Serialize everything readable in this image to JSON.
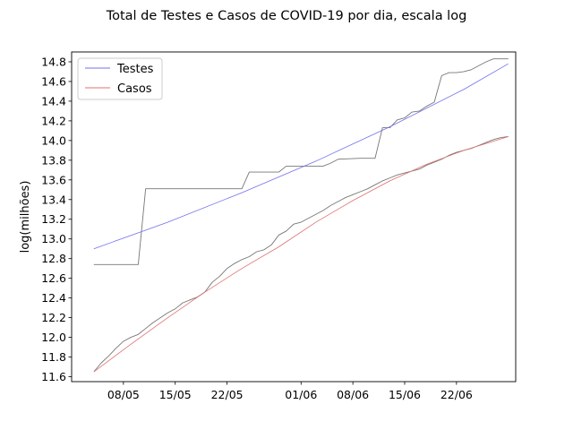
{
  "chart_data": {
    "type": "line",
    "title": "Total de Testes e Casos de COVID-19 por dia, escala log",
    "xlabel": "",
    "ylabel": "log(milhões)",
    "ylim": [
      11.55,
      14.9
    ],
    "yticks": [
      11.6,
      11.8,
      12.0,
      12.2,
      12.4,
      12.6,
      12.8,
      13.0,
      13.2,
      13.4,
      13.6,
      13.8,
      14.0,
      14.2,
      14.4,
      14.6,
      14.8
    ],
    "ytick_labels": [
      "11.6",
      "11.8",
      "12.0",
      "12.2",
      "12.4",
      "12.6",
      "12.8",
      "13.0",
      "13.2",
      "13.4",
      "13.6",
      "13.8",
      "14.0",
      "14.2",
      "14.4",
      "14.6",
      "14.8"
    ],
    "xlim": [
      "2020-05-01",
      "2020-06-30"
    ],
    "xticks": [
      "2020-05-08",
      "2020-05-15",
      "2020-05-22",
      "2020-06-01",
      "2020-06-08",
      "2020-06-15",
      "2020-06-22"
    ],
    "xtick_labels": [
      "08/05",
      "15/05",
      "22/05",
      "01/06",
      "08/06",
      "15/06",
      "22/06"
    ],
    "legend_position": "top-left",
    "grid": false,
    "series": [
      {
        "name": "Testes",
        "kind": "fit",
        "color": "#7070ee",
        "x": [
          "2020-05-04",
          "2020-05-14",
          "2020-05-24",
          "2020-06-03",
          "2020-06-13",
          "2020-06-23",
          "2020-06-29"
        ],
        "y": [
          12.9,
          13.17,
          13.47,
          13.79,
          14.14,
          14.52,
          14.78
        ]
      },
      {
        "name": "Casos",
        "kind": "fit",
        "color": "#e07070",
        "x": [
          "2020-05-04",
          "2020-05-09",
          "2020-05-14",
          "2020-05-19",
          "2020-05-24",
          "2020-05-29",
          "2020-06-03",
          "2020-06-08",
          "2020-06-13",
          "2020-06-18",
          "2020-06-23",
          "2020-06-29"
        ],
        "y": [
          11.65,
          11.93,
          12.2,
          12.46,
          12.7,
          12.92,
          13.17,
          13.39,
          13.59,
          13.76,
          13.9,
          14.04
        ]
      },
      {
        "kind": "data",
        "color": "#777777",
        "x": [
          "2020-05-04",
          "2020-05-10",
          "2020-05-11",
          "2020-05-23",
          "2020-05-24",
          "2020-05-25",
          "2020-05-29",
          "2020-05-30",
          "2020-06-04",
          "2020-06-05",
          "2020-06-06",
          "2020-06-09",
          "2020-06-10",
          "2020-06-11",
          "2020-06-12",
          "2020-06-13",
          "2020-06-14",
          "2020-06-15",
          "2020-06-16",
          "2020-06-17",
          "2020-06-18",
          "2020-06-19",
          "2020-06-20",
          "2020-06-21",
          "2020-06-22",
          "2020-06-23",
          "2020-06-24",
          "2020-06-25",
          "2020-06-26",
          "2020-06-27",
          "2020-06-28",
          "2020-06-29"
        ],
        "y": [
          12.74,
          12.74,
          13.51,
          13.51,
          13.51,
          13.68,
          13.68,
          13.74,
          13.74,
          13.77,
          13.81,
          13.82,
          13.82,
          13.82,
          14.13,
          14.13,
          14.21,
          14.23,
          14.29,
          14.3,
          14.35,
          14.39,
          14.66,
          14.69,
          14.69,
          14.7,
          14.72,
          14.76,
          14.8,
          14.83,
          14.83,
          14.83
        ]
      },
      {
        "kind": "data",
        "color": "#777777",
        "x": [
          "2020-05-04",
          "2020-05-05",
          "2020-05-06",
          "2020-05-07",
          "2020-05-08",
          "2020-05-09",
          "2020-05-10",
          "2020-05-11",
          "2020-05-12",
          "2020-05-13",
          "2020-05-14",
          "2020-05-15",
          "2020-05-16",
          "2020-05-17",
          "2020-05-18",
          "2020-05-19",
          "2020-05-20",
          "2020-05-21",
          "2020-05-22",
          "2020-05-23",
          "2020-05-24",
          "2020-05-25",
          "2020-05-26",
          "2020-05-27",
          "2020-05-28",
          "2020-05-29",
          "2020-05-30",
          "2020-05-31",
          "2020-06-01",
          "2020-06-02",
          "2020-06-03",
          "2020-06-04",
          "2020-06-05",
          "2020-06-06",
          "2020-06-07",
          "2020-06-08",
          "2020-06-09",
          "2020-06-10",
          "2020-06-11",
          "2020-06-12",
          "2020-06-13",
          "2020-06-14",
          "2020-06-15",
          "2020-06-16",
          "2020-06-17",
          "2020-06-18",
          "2020-06-19",
          "2020-06-20",
          "2020-06-21",
          "2020-06-22",
          "2020-06-23",
          "2020-06-24",
          "2020-06-25",
          "2020-06-26",
          "2020-06-27",
          "2020-06-28",
          "2020-06-29"
        ],
        "y": [
          11.65,
          11.74,
          11.81,
          11.89,
          11.96,
          12.0,
          12.03,
          12.09,
          12.15,
          12.2,
          12.25,
          12.29,
          12.35,
          12.38,
          12.41,
          12.46,
          12.56,
          12.62,
          12.7,
          12.75,
          12.79,
          12.82,
          12.87,
          12.89,
          12.94,
          13.04,
          13.08,
          13.15,
          13.17,
          13.21,
          13.25,
          13.29,
          13.34,
          13.38,
          13.42,
          13.45,
          13.48,
          13.51,
          13.55,
          13.59,
          13.62,
          13.65,
          13.67,
          13.69,
          13.71,
          13.75,
          13.78,
          13.81,
          13.85,
          13.88,
          13.9,
          13.92,
          13.95,
          13.98,
          14.01,
          14.03,
          14.04
        ]
      }
    ]
  }
}
